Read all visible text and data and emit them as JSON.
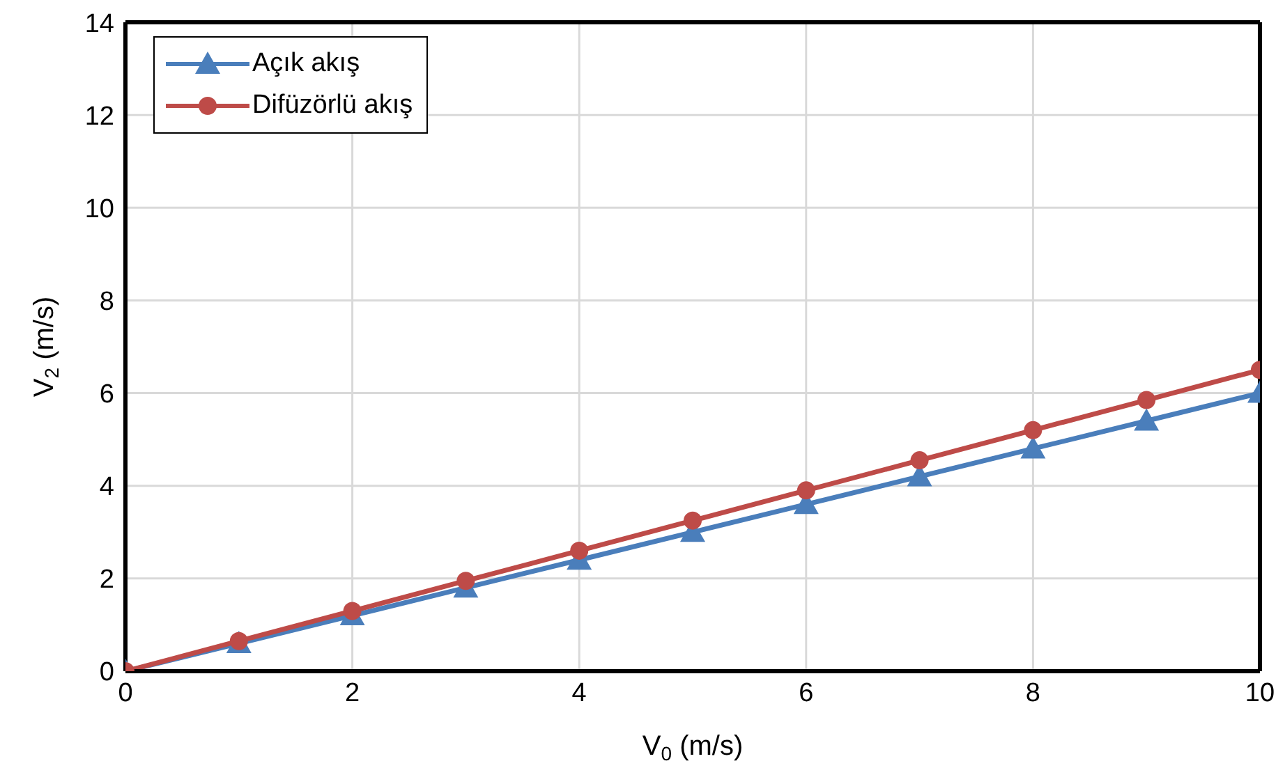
{
  "chart_data": {
    "type": "line",
    "xlabel": "V$_{0}$ (m/s)",
    "ylabel": "V$_{2}$ (m/s)",
    "x": [
      0,
      1,
      2,
      3,
      4,
      5,
      6,
      7,
      8,
      9,
      10
    ],
    "series": [
      {
        "name": "Açık akış",
        "color": "#4a7ebb",
        "marker": "triangle",
        "values": [
          0,
          0.6,
          1.2,
          1.8,
          2.4,
          3.0,
          3.6,
          4.2,
          4.8,
          5.4,
          6.0
        ]
      },
      {
        "name": "Difüzörlü akış",
        "color": "#be4b48",
        "marker": "circle",
        "values": [
          0,
          0.65,
          1.3,
          1.95,
          2.6,
          3.25,
          3.9,
          4.55,
          5.2,
          5.85,
          6.5
        ]
      }
    ],
    "xlim": [
      0,
      10
    ],
    "xticks": [
      0,
      2,
      4,
      6,
      8,
      10
    ],
    "ylim": [
      0,
      14
    ],
    "yticks": [
      0,
      2,
      4,
      6,
      8,
      10,
      12,
      14
    ],
    "grid": true,
    "legend": "top left",
    "line_style": "solid"
  }
}
